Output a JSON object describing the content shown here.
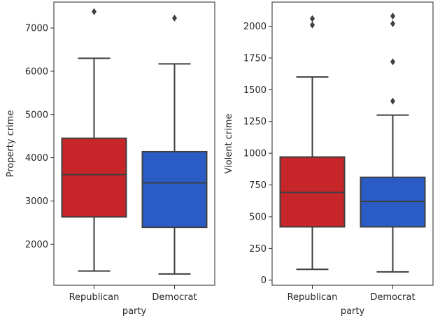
{
  "chart_data": [
    {
      "type": "box",
      "title": "",
      "xlabel": "party",
      "ylabel": "Property crime",
      "categories": [
        "Republican",
        "Democrat"
      ],
      "colors": [
        "#c6262a",
        "#2b5cc6"
      ],
      "ylim": [
        1050,
        7600
      ],
      "yticks": [
        2000,
        3000,
        4000,
        5000,
        6000,
        7000
      ],
      "ytick_labels": [
        "2000",
        "3000",
        "4000",
        "5000",
        "6000",
        "7000"
      ],
      "boxes": [
        {
          "category": "Republican",
          "whisker_low": 1380,
          "q1": 2630,
          "median": 3610,
          "q3": 4450,
          "whisker_high": 6300,
          "outliers": [
            7380
          ]
        },
        {
          "category": "Democrat",
          "whisker_low": 1310,
          "q1": 2390,
          "median": 3420,
          "q3": 4140,
          "whisker_high": 6170,
          "outliers": [
            7230
          ]
        }
      ]
    },
    {
      "type": "box",
      "title": "",
      "xlabel": "party",
      "ylabel": "Violent crime",
      "categories": [
        "Republican",
        "Democrat"
      ],
      "colors": [
        "#c6262a",
        "#2b5cc6"
      ],
      "ylim": [
        -40,
        2190
      ],
      "yticks": [
        0,
        250,
        500,
        750,
        1000,
        1250,
        1500,
        1750,
        2000
      ],
      "ytick_labels": [
        "0",
        "250",
        "500",
        "750",
        "1000",
        "1250",
        "1500",
        "1750",
        "2000"
      ],
      "boxes": [
        {
          "category": "Republican",
          "whisker_low": 85,
          "q1": 420,
          "median": 690,
          "q3": 970,
          "whisker_high": 1600,
          "outliers": [
            2010,
            2060
          ]
        },
        {
          "category": "Democrat",
          "whisker_low": 65,
          "q1": 420,
          "median": 620,
          "q3": 810,
          "whisker_high": 1300,
          "outliers": [
            1410,
            1720,
            2020,
            2080
          ]
        }
      ]
    }
  ]
}
